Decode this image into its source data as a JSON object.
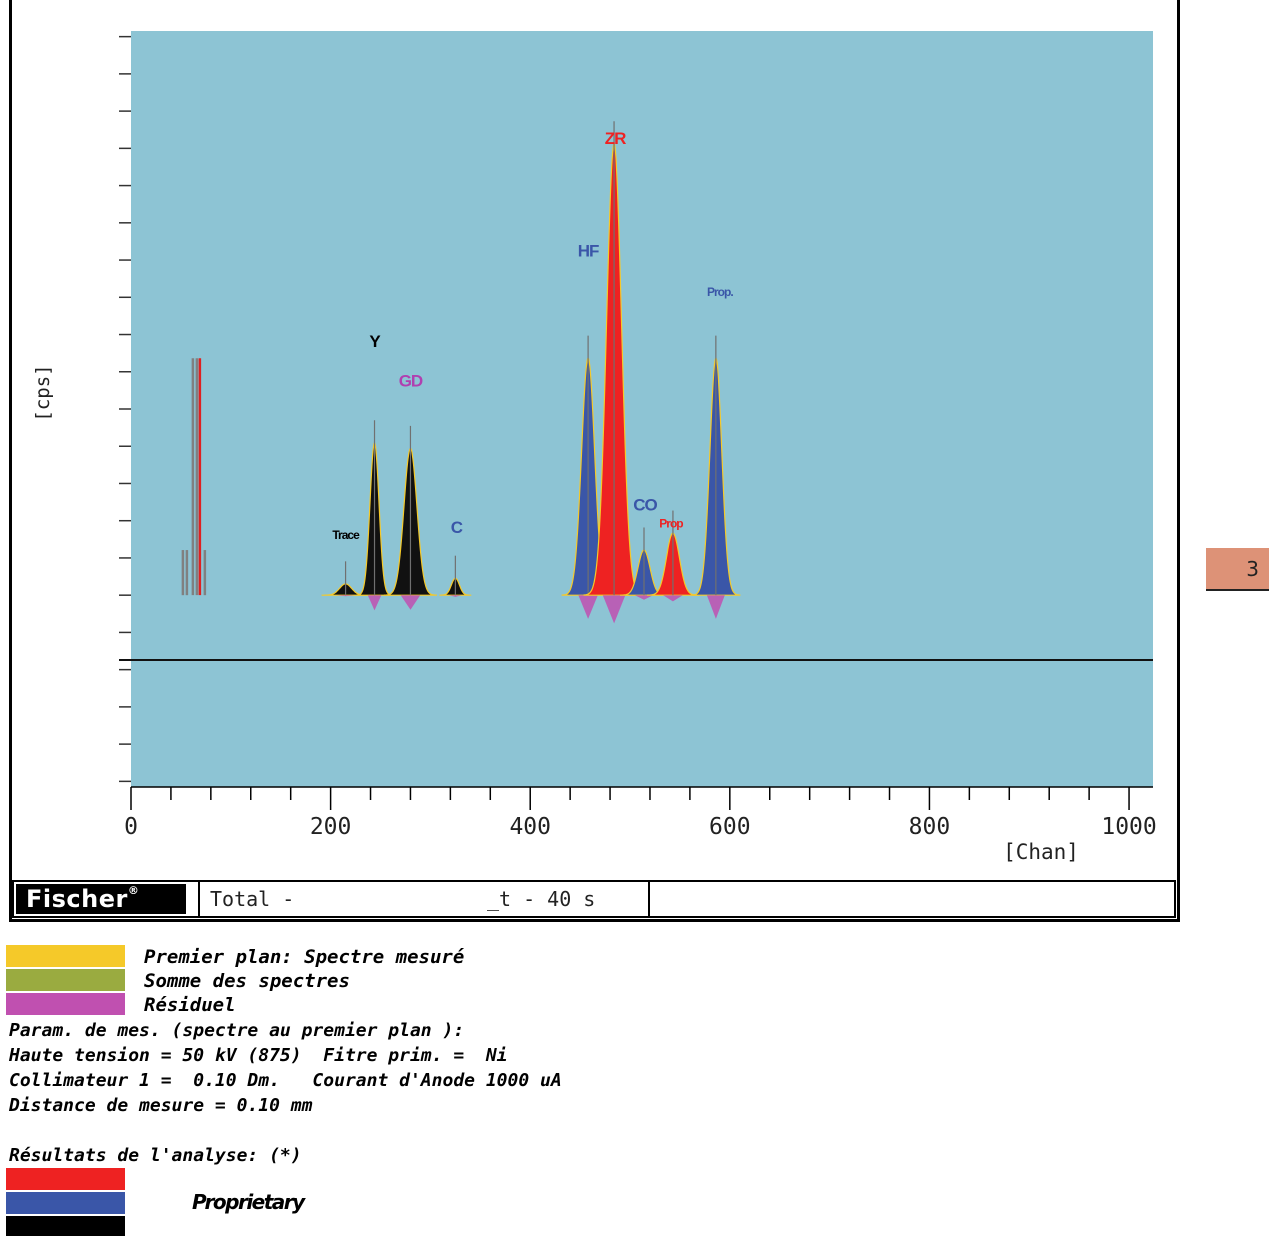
{
  "chart_data": {
    "type": "line",
    "title": "",
    "xlabel": "[Chan]",
    "ylabel": "[cps]",
    "xlim": [
      0,
      1024
    ],
    "xticks": [
      0,
      200,
      400,
      600,
      800,
      1000
    ],
    "xtick_labels": [
      "0",
      "200",
      "400",
      "600",
      "800",
      "1000"
    ],
    "ylim": [
      -34,
      100
    ],
    "background": "#8dc4d4",
    "gaussian_peaks": [
      {
        "name": "Trace",
        "center": 215,
        "height": 2,
        "width": 6,
        "fill": "#111111"
      },
      {
        "name": "Y",
        "center": 244,
        "height": 27,
        "width": 4.5,
        "fill": "#111111"
      },
      {
        "name": "GD",
        "center": 280,
        "height": 26,
        "width": 6.5,
        "fill": "#111111"
      },
      {
        "name": "C",
        "center": 325,
        "height": 3,
        "width": 4,
        "fill": "#111111"
      },
      {
        "name": "HF",
        "center": 458,
        "height": 42,
        "width": 6.5,
        "fill": "#3a56a8"
      },
      {
        "name": "ZR",
        "center": 484,
        "height": 80,
        "width": 7.5,
        "fill": "#ee2222"
      },
      {
        "name": "CO",
        "center": 514,
        "height": 8,
        "width": 6,
        "fill": "#3a56a8"
      },
      {
        "name": "Prop",
        "center": 543,
        "height": 11,
        "width": 6.5,
        "fill": "#ee2222"
      },
      {
        "name": "Prop.",
        "center": 586,
        "height": 42,
        "width": 6,
        "fill": "#3a56a8"
      }
    ],
    "escape_lines": [
      {
        "x": 52,
        "height": 8,
        "color": "#808080"
      },
      {
        "x": 56,
        "height": 8,
        "color": "#808080"
      },
      {
        "x": 62,
        "height": 42,
        "color": "#808080"
      },
      {
        "x": 66,
        "height": 42,
        "color": "#808080"
      },
      {
        "x": 69,
        "height": 42,
        "color": "#e02020"
      },
      {
        "x": 74,
        "height": 8,
        "color": "#808080"
      }
    ],
    "peak_labels": [
      {
        "text": "Trace",
        "x": 215,
        "y": 10,
        "color": "#000000"
      },
      {
        "text": "Y",
        "x": 244,
        "y": 44,
        "color": "#000000"
      },
      {
        "text": "GD",
        "x": 280,
        "y": 37,
        "color": "#b040b0"
      },
      {
        "text": "C",
        "x": 326,
        "y": 11,
        "color": "#3a56a8"
      },
      {
        "text": "HF",
        "x": 458,
        "y": 60,
        "color": "#3a56a8"
      },
      {
        "text": "ZR",
        "x": 485,
        "y": 80,
        "color": "#ee2222"
      },
      {
        "text": "CO",
        "x": 515,
        "y": 15,
        "color": "#3a56a8"
      },
      {
        "text": "Prop",
        "x": 541,
        "y": 12,
        "color": "#ee2222"
      },
      {
        "text": "Prop.",
        "x": 590,
        "y": 53,
        "color": "#3a56a8"
      }
    ],
    "series": [
      {
        "name": "Premier plan: Spectre mesuré",
        "color": "#f5c929"
      },
      {
        "name": "Somme des spectres",
        "color": "#9aab40"
      },
      {
        "name": "Résiduel",
        "color": "#c050b0"
      }
    ]
  },
  "status_bar": {
    "logo": "Fischer",
    "logo_mark": "®",
    "text": "Total -                _t - 40 s"
  },
  "side_badge": "3",
  "legend": [
    {
      "label": "Premier plan: Spectre mesuré",
      "color": "#f5c929"
    },
    {
      "label": "Somme des spectres",
      "color": "#9aab40"
    },
    {
      "label": "Résiduel",
      "color": "#c050b0"
    }
  ],
  "params": {
    "heading": "Param. de mes. (spectre au premier plan ):",
    "line1": "Haute tension = 50 kV (875)  Fitre prim. =  Ni",
    "line2": "Collimateur 1 =  0.10 Dm.   Courant d'Anode 1000 uA",
    "line3": "Distance de mesure = 0.10 mm"
  },
  "results": {
    "heading": "Résultats de l'analyse: (*)",
    "swatch_colors": [
      "#ee2222",
      "#3a56a8",
      "#000000"
    ],
    "label": "Proprietary"
  }
}
